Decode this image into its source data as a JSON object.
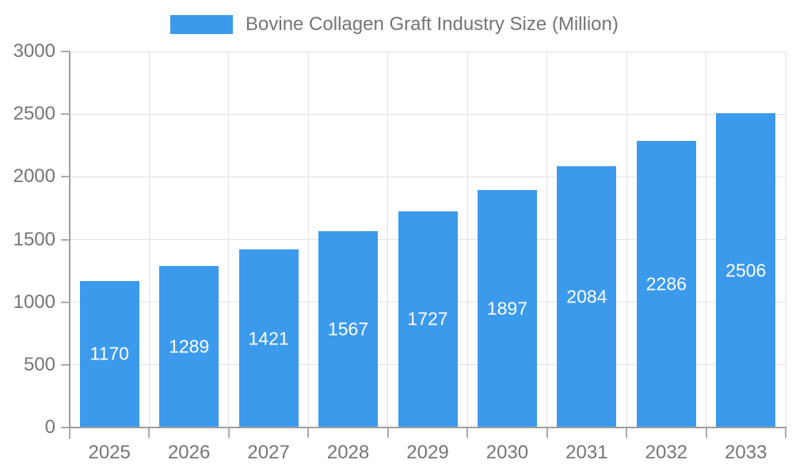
{
  "legend": {
    "label": "Bovine Collagen Graft Industry Size (Million)"
  },
  "chart_data": {
    "type": "bar",
    "title": "Bovine Collagen Graft Industry Size (Million)",
    "categories": [
      "2025",
      "2026",
      "2027",
      "2028",
      "2029",
      "2030",
      "2031",
      "2032",
      "2033"
    ],
    "series": [
      {
        "name": "Bovine Collagen Graft Industry Size (Million)",
        "values": [
          1170,
          1289,
          1421,
          1567,
          1727,
          1897,
          2084,
          2286,
          2506
        ]
      }
    ],
    "value_labels": [
      "1170",
      "1289",
      "1421",
      "1567",
      "1727",
      "1897",
      "2084",
      "2286",
      "2506"
    ],
    "xlabel": "",
    "ylabel": "",
    "ylim": [
      0,
      3000
    ],
    "ytick_interval": 500,
    "yticks": [
      "0",
      "500",
      "1000",
      "1500",
      "2000",
      "2500",
      "3000"
    ],
    "grid": true,
    "legend_position": "top-center",
    "colors": {
      "bar": "#3C9AED",
      "grid": "#E2E2E2",
      "axis": "#9E9E9E",
      "tick_mark": "#ABABAB",
      "tick_text": "#757575",
      "legend_text": "#757575",
      "value_label": "#FFFFFF",
      "background": "#FFFFFF"
    }
  }
}
